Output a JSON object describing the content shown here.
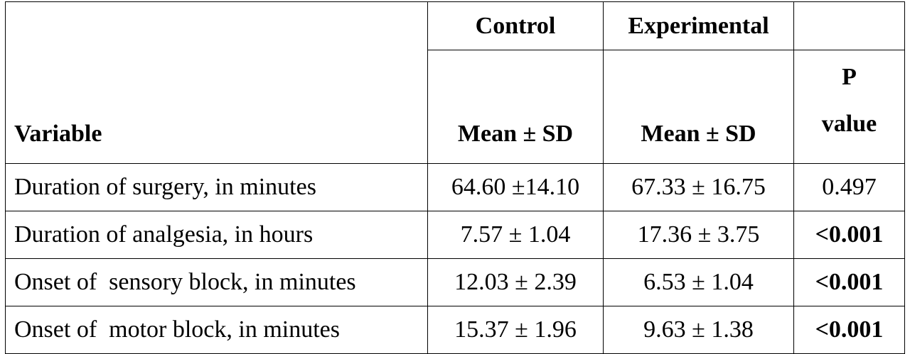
{
  "table": {
    "header": {
      "variable": "Variable",
      "groups": [
        "Control",
        "Experimental"
      ],
      "stat": [
        "Mean ± SD",
        "Mean ± SD"
      ],
      "p": "P value"
    },
    "rows": [
      [
        {
          "text": "Duration of surgery, in minutes"
        },
        {
          "text": "64.60 ±14.10"
        },
        {
          "text": "67.33 ± 16.75"
        },
        {
          "text": "0.497"
        }
      ],
      [
        {
          "text": "Duration of analgesia, in hours"
        },
        {
          "text": "7.57 ± 1.04"
        },
        {
          "text": "17.36 ± 3.75"
        },
        {
          "text": "<0.001",
          "bold": true
        }
      ],
      [
        {
          "text": "Onset of  sensory block, in minutes"
        },
        {
          "text": "12.03 ± 2.39"
        },
        {
          "text": "6.53 ± 1.04"
        },
        {
          "text": "<0.001",
          "bold": true
        }
      ],
      [
        {
          "text": "Onset of  motor block, in minutes"
        },
        {
          "text": "15.37 ± 1.96"
        },
        {
          "text": "9.63 ± 1.38"
        },
        {
          "text": "<0.001",
          "bold": true
        }
      ]
    ]
  }
}
